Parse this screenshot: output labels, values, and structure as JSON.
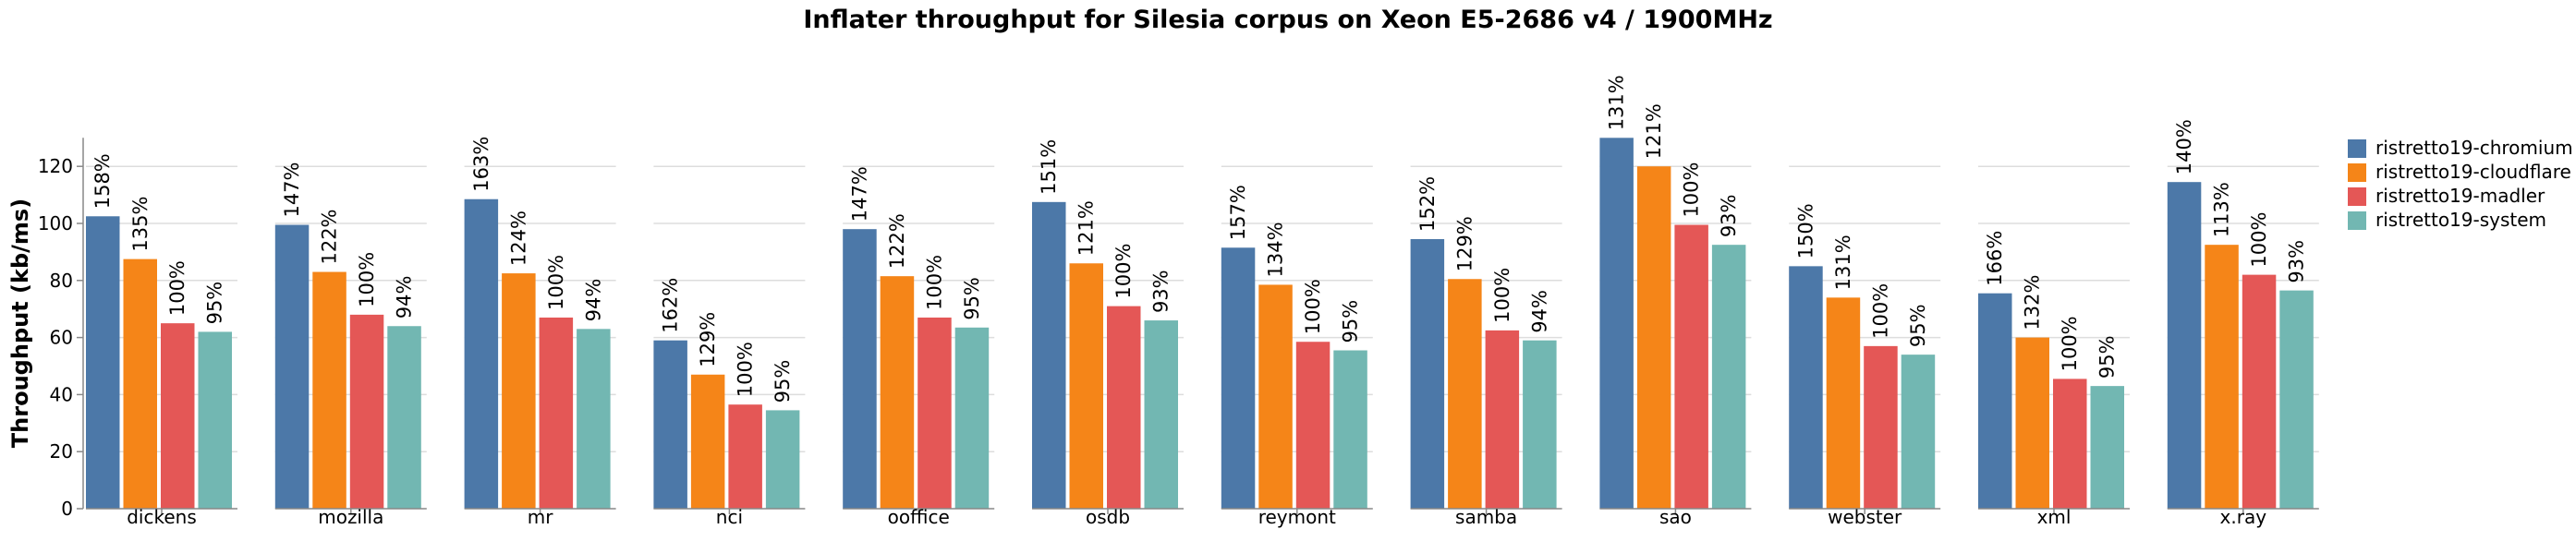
{
  "chart_data": {
    "type": "bar",
    "title": "Inflater throughput for Silesia corpus on Xeon E5-2686 v4 / 1900MHz",
    "xlabel": "",
    "ylabel": "Throughput (kb/ms)",
    "ylim": [
      0,
      130
    ],
    "yticks": [
      0,
      20,
      40,
      60,
      80,
      100,
      120
    ],
    "grid": true,
    "legend_position": "right",
    "categories": [
      "dickens",
      "mozilla",
      "mr",
      "nci",
      "ooffice",
      "osdb",
      "reymont",
      "samba",
      "sao",
      "webster",
      "xml",
      "x.ray"
    ],
    "series": [
      {
        "name": "ristretto19-chromium",
        "color": "#4c78a8",
        "values": [
          102.5,
          99.5,
          108.5,
          59,
          98,
          107.5,
          91.5,
          94.5,
          130,
          85,
          75.5,
          114.5
        ],
        "labels": [
          "158%",
          "147%",
          "163%",
          "162%",
          "147%",
          "151%",
          "157%",
          "152%",
          "131%",
          "150%",
          "166%",
          "140%"
        ]
      },
      {
        "name": "ristretto19-cloudflare",
        "color": "#f58518",
        "values": [
          87.5,
          83,
          82.5,
          47,
          81.5,
          86,
          78.5,
          80.5,
          120,
          74,
          60,
          92.5
        ],
        "labels": [
          "135%",
          "122%",
          "124%",
          "129%",
          "122%",
          "121%",
          "134%",
          "129%",
          "121%",
          "131%",
          "132%",
          "113%"
        ]
      },
      {
        "name": "ristretto19-madler",
        "color": "#e45756",
        "values": [
          65,
          68,
          67,
          36.5,
          67,
          71,
          58.5,
          62.5,
          99.5,
          57,
          45.5,
          82
        ],
        "labels": [
          "100%",
          "100%",
          "100%",
          "100%",
          "100%",
          "100%",
          "100%",
          "100%",
          "100%",
          "100%",
          "100%",
          "100%"
        ]
      },
      {
        "name": "ristretto19-system",
        "color": "#72b7b2",
        "values": [
          62,
          64,
          63,
          34.5,
          63.5,
          66,
          55.5,
          59,
          92.5,
          54,
          43,
          76.5
        ],
        "labels": [
          "95%",
          "94%",
          "94%",
          "95%",
          "95%",
          "93%",
          "95%",
          "94%",
          "93%",
          "95%",
          "95%",
          "93%"
        ]
      }
    ]
  }
}
